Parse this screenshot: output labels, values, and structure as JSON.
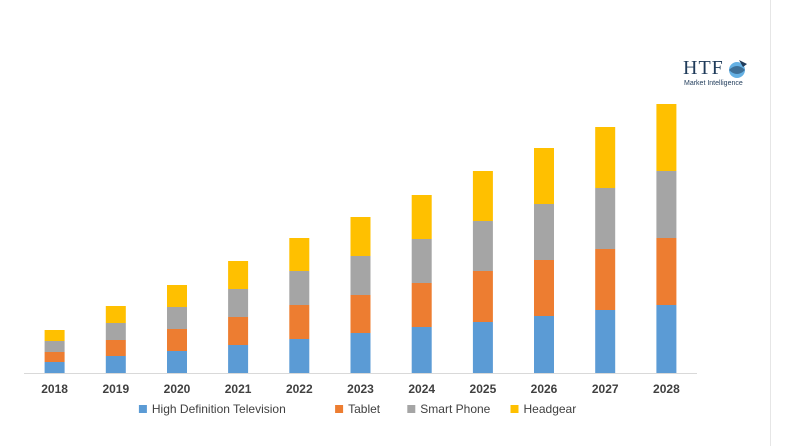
{
  "brand": {
    "name": "HTF",
    "tagline": "Market Intelligence"
  },
  "chart_data": {
    "type": "bar",
    "stacked": true,
    "categories": [
      "2018",
      "2019",
      "2020",
      "2021",
      "2022",
      "2023",
      "2024",
      "2025",
      "2026",
      "2027",
      "2028"
    ],
    "series": [
      {
        "name": "High Definition Television",
        "color": "#5b9bd5",
        "values": [
          11,
          17,
          22,
          28,
          34,
          40,
          46,
          51,
          57,
          63,
          68
        ]
      },
      {
        "name": "Tablet",
        "color": "#ed7d31",
        "values": [
          10,
          16,
          22,
          28,
          34,
          38,
          44,
          51,
          56,
          61,
          67
        ]
      },
      {
        "name": "Smart Phone",
        "color": "#a5a5a5",
        "values": [
          11,
          17,
          22,
          28,
          34,
          39,
          44,
          50,
          56,
          61,
          67
        ]
      },
      {
        "name": "Headgear",
        "color": "#ffc000",
        "values": [
          11,
          17,
          22,
          28,
          33,
          39,
          44,
          50,
          56,
          61,
          67
        ]
      }
    ],
    "ylim": [
      0,
      280
    ],
    "grid": false,
    "legend_position": "bottom"
  }
}
